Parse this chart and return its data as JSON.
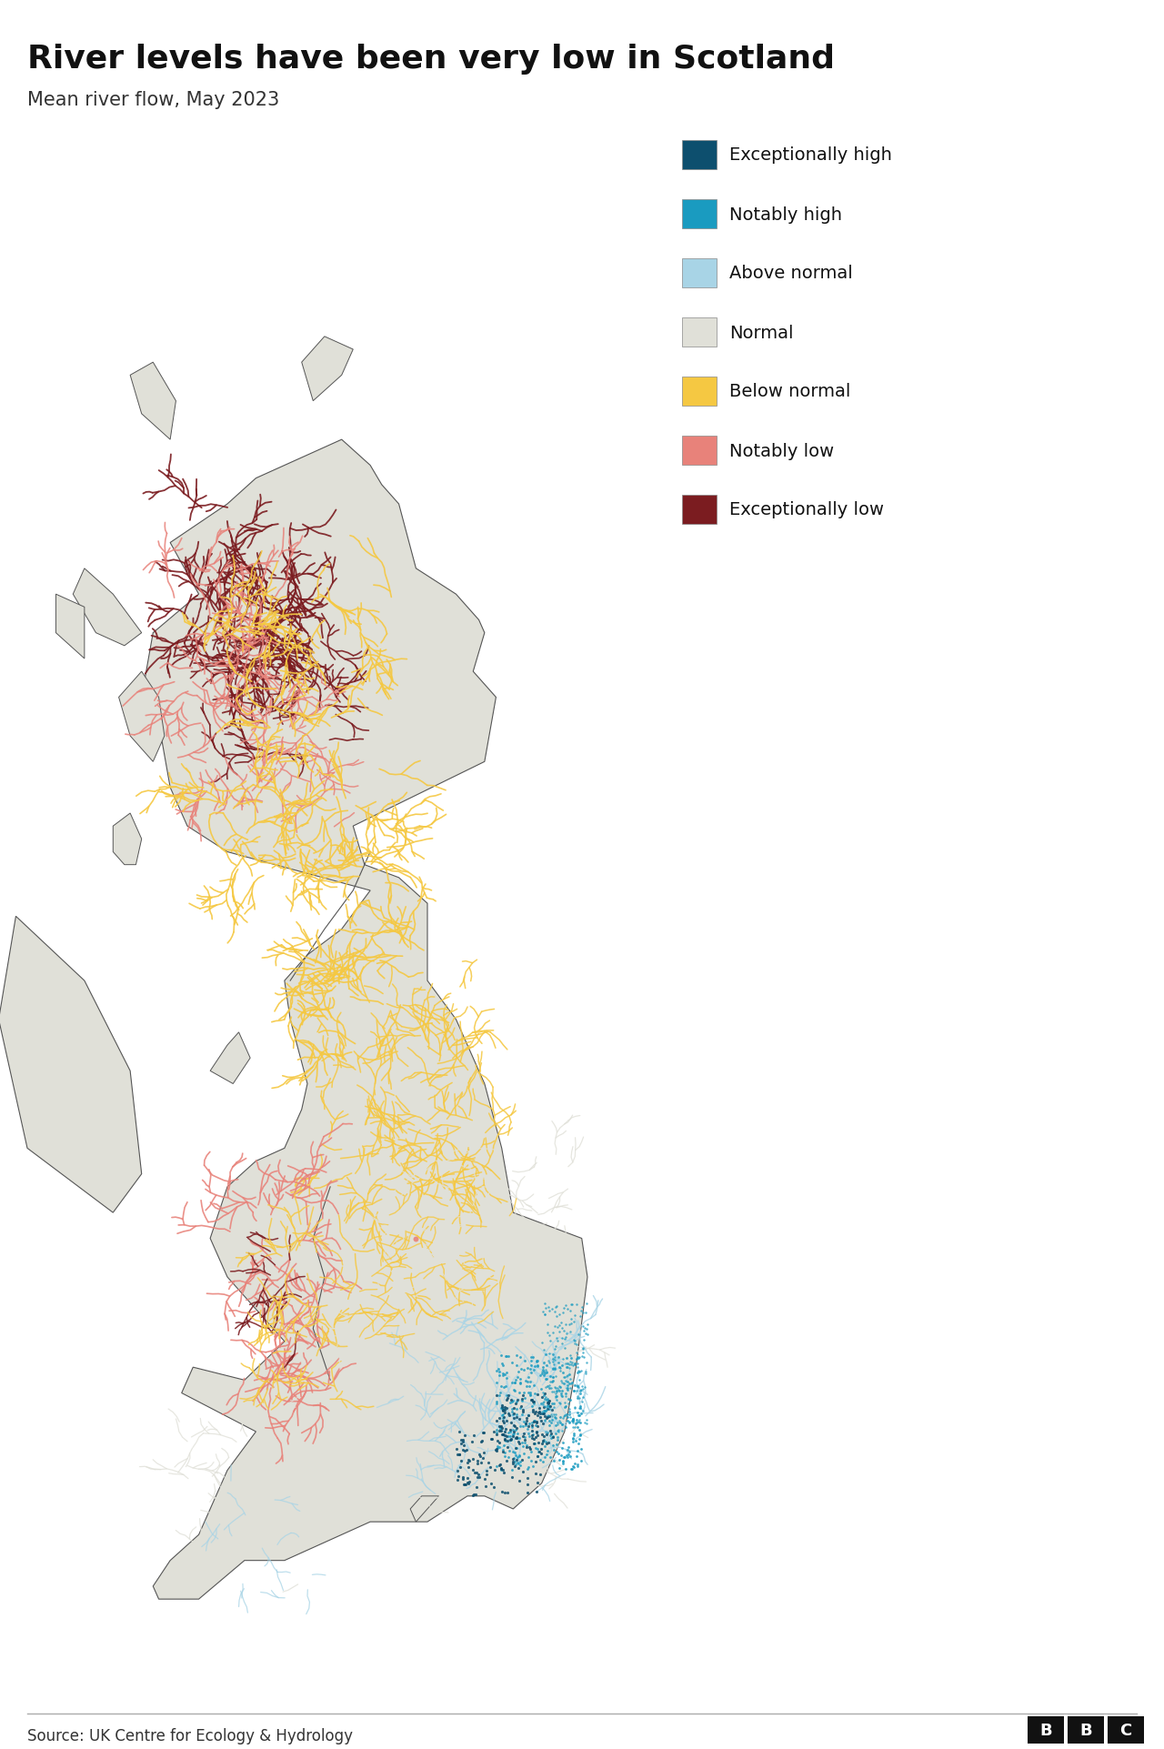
{
  "title": "River levels have been very low in Scotland",
  "subtitle": "Mean river flow, May 2023",
  "source": "Source: UK Centre for Ecology & Hydrology",
  "title_fontsize": 26,
  "subtitle_fontsize": 15,
  "source_fontsize": 12,
  "background_color": "#ffffff",
  "legend_entries": [
    {
      "label": "Exceptionally high",
      "color": "#0d4f6e"
    },
    {
      "label": "Notably high",
      "color": "#1a9bc0"
    },
    {
      "label": "Above normal",
      "color": "#a8d4e6"
    },
    {
      "label": "Normal",
      "color": "#e0e0d8"
    },
    {
      "label": "Below normal",
      "color": "#f5c842"
    },
    {
      "label": "Notably low",
      "color": "#e8827a"
    },
    {
      "label": "Exceptionally low",
      "color": "#7b1c20"
    }
  ],
  "map_bg_color": "#e0e0d8",
  "map_border_color": "#555555",
  "map_border_lw": 0.8,
  "figsize": [
    12.8,
    19.24
  ]
}
